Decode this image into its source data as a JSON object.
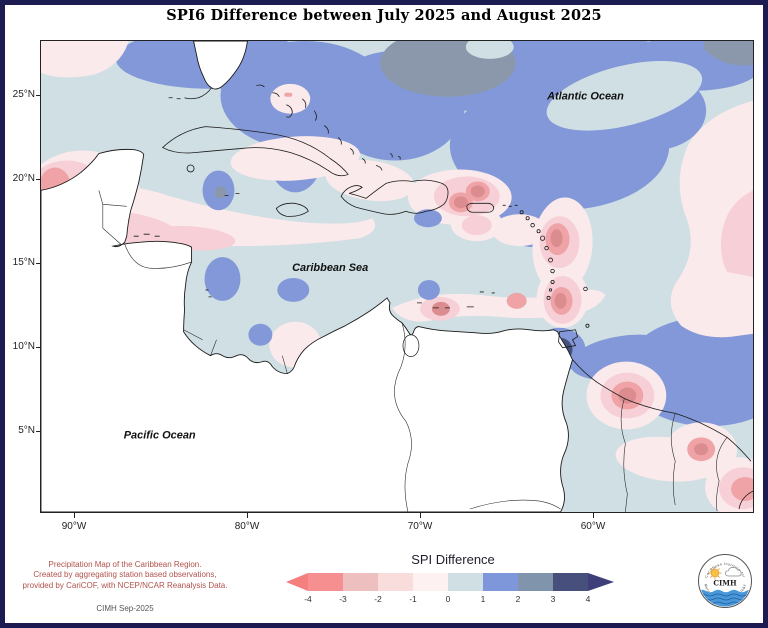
{
  "title": "SPI6 Difference between July 2025 and August 2025",
  "map": {
    "labels": {
      "caribbean_sea": "Caribbean Sea",
      "atlantic_ocean": "Atlantic Ocean",
      "pacific_ocean": "Pacific Ocean"
    },
    "axes": {
      "lat": [
        "25°N",
        "20°N",
        "15°N",
        "10°N",
        "5°N"
      ],
      "lon": [
        "90°W",
        "80°W",
        "70°W",
        "60°W"
      ]
    }
  },
  "legend": {
    "title": "SPI Difference",
    "tick_labels": [
      "-4",
      "-3",
      "-2",
      "-1",
      "0",
      "1",
      "2",
      "3",
      "4"
    ],
    "segment_colors": [
      "#f69090",
      "#eebfbf",
      "#f9dcdc",
      "#fdf1f1",
      "#cfdfe3",
      "#7e97da",
      "#8095ab",
      "#47507d"
    ],
    "arrow_left_color": "#f57e7e",
    "arrow_right_color": "#3e3f78"
  },
  "credits": {
    "line1": "Precipitation Map of the Caribbean Region.",
    "line2": "Created by aggregating station based observations,",
    "line3": "provided by CariCOF, with NCEP/NCAR Reanalysis Data.",
    "stamp": "CIMH Sep-2025"
  },
  "logo": {
    "text": "CIMH",
    "rim_top": "Caribbean Institute for",
    "rim_bottom": "Meteorology and Hydrology"
  },
  "palette": {
    "sea_base": "#cfdfe3",
    "blue_1_2": "#8298d8",
    "gray_2_3": "#8b98ac",
    "navy_3_4": "#46517e",
    "pale_pink": "#fbeaec",
    "pink": "#f6d0d6",
    "salmon": "#efa3a6",
    "red": "#da8c8f",
    "land": "#ffffff",
    "frame": "#1c1c52"
  }
}
